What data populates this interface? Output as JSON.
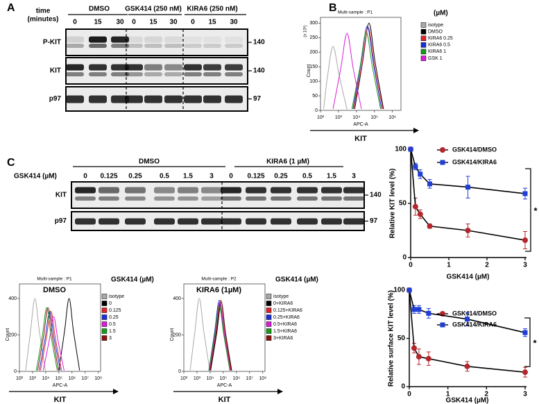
{
  "panel_a": {
    "label": "A",
    "time_label": [
      "time",
      "(minutes)"
    ],
    "groups": [
      "DMSO",
      "GSK414 (250 nM)",
      "KIRA6 (250 nM)"
    ],
    "times": [
      "0",
      "15",
      "30",
      "0",
      "15",
      "30",
      "0",
      "15",
      "30"
    ],
    "rows": [
      {
        "name": "P-KIT",
        "mw": "140"
      },
      {
        "name": "KIT",
        "mw": "140"
      },
      {
        "name": "p97",
        "mw": "97"
      }
    ]
  },
  "panel_c": {
    "label": "C",
    "groups": [
      "DMSO",
      "KIRA6 (1 µM)"
    ],
    "dose_label": "GSK414 (µM)",
    "doses": [
      "0",
      "0.125",
      "0.25",
      "0.5",
      "1.5",
      "3",
      "0",
      "0.125",
      "0.25",
      "0.5",
      "1.5",
      "3"
    ],
    "rows": [
      {
        "name": "KIT",
        "mw": "140"
      },
      {
        "name": "p97",
        "mw": "97"
      }
    ]
  },
  "chart_data": [
    {
      "type": "density",
      "panel": "B",
      "title": "Multi-sample : P1",
      "legend_title": "(µM)",
      "y_label": "Count",
      "y_multiplier": "(x 10¹)",
      "x_label": "APC-A",
      "arrow_label": "KIT",
      "log_x": true,
      "xlim": [
        100,
        3000000
      ],
      "xticks": [
        {
          "value": 100,
          "label": "10²"
        },
        {
          "value": 1000,
          "label": "10³"
        },
        {
          "value": 10000,
          "label": "10⁴"
        },
        {
          "value": 100000,
          "label": "10⁵"
        },
        {
          "value": 1000000,
          "label": "10⁶"
        }
      ],
      "ylim": [
        0,
        320
      ],
      "yticks": [
        0,
        50,
        100,
        150,
        200,
        250,
        300
      ],
      "series": [
        {
          "name": "isotype",
          "color": "#a8a8a8",
          "x": [
            150,
            250,
            500,
            1100,
            3000
          ],
          "values": [
            5,
            120,
            220,
            120,
            3
          ]
        },
        {
          "name": "DMSO",
          "color": "#000000",
          "x": [
            8000,
            22000,
            50000,
            110000,
            320000
          ],
          "values": [
            5,
            165,
            300,
            165,
            5
          ]
        },
        {
          "name": "KIRA6 0.25",
          "color": "#e0242a",
          "x": [
            7000,
            20000,
            45000,
            100000,
            290000
          ],
          "values": [
            5,
            155,
            285,
            155,
            5
          ]
        },
        {
          "name": "KIRA6 0.5",
          "color": "#1c2ed8",
          "x": [
            6400,
            18000,
            40000,
            88000,
            250000
          ],
          "values": [
            5,
            160,
            290,
            160,
            5
          ]
        },
        {
          "name": "KIRA6 1",
          "color": "#1a9a1a",
          "x": [
            5600,
            16000,
            35000,
            77000,
            220000
          ],
          "values": [
            5,
            150,
            270,
            150,
            5
          ]
        },
        {
          "name": "GSK 1",
          "color": "#d81cd8",
          "x": [
            500,
            1350,
            3000,
            6600,
            19000
          ],
          "values": [
            5,
            145,
            265,
            145,
            5
          ]
        }
      ]
    },
    {
      "type": "line",
      "y_label": "Relative KIT level (%)",
      "x_label": "GSK414 (µM)",
      "annotation": "*",
      "xlim": [
        0,
        3
      ],
      "xticks": [
        0,
        1,
        2,
        3
      ],
      "ylim": [
        0,
        100
      ],
      "yticks": [
        0,
        50,
        100
      ],
      "x": [
        0,
        0.125,
        0.25,
        0.5,
        1.5,
        3
      ],
      "series": [
        {
          "name": "GSK414/DMSO",
          "color": "#b3262b",
          "marker": "circle",
          "values": [
            100,
            47,
            40,
            29,
            25,
            16
          ],
          "errors": [
            0,
            8,
            4,
            2,
            6,
            8
          ]
        },
        {
          "name": "GSK414/KIRA6",
          "color": "#1f3fd6",
          "marker": "square",
          "values": [
            100,
            84,
            77,
            68,
            65,
            59
          ],
          "errors": [
            0,
            3,
            4,
            4,
            10,
            5
          ]
        }
      ]
    },
    {
      "type": "density",
      "title": "Multi-sample : P1",
      "subtitle": "DMSO",
      "legend_title": "GSK414 (µM)",
      "y_label": "Count",
      "x_label": "APC-A",
      "arrow_label": "KIT",
      "log_x": true,
      "xlim": [
        100,
        150000000
      ],
      "xticks": [
        {
          "value": 100,
          "label": "10²"
        },
        {
          "value": 1000,
          "label": "10³"
        },
        {
          "value": 10000,
          "label": "10⁴"
        },
        {
          "value": 100000,
          "label": "10⁵"
        },
        {
          "value": 1000000,
          "label": "10⁶"
        },
        {
          "value": 10000000,
          "label": "10⁷"
        },
        {
          "value": 100000000,
          "label": "10⁸"
        }
      ],
      "ylim": [
        0,
        480
      ],
      "yticks": [
        0,
        200,
        400
      ],
      "series": [
        {
          "name": "isotype",
          "color": "#a8a8a8",
          "x": [
            300,
            700,
            1500,
            3300,
            9500
          ],
          "values": [
            5,
            220,
            400,
            220,
            5
          ]
        },
        {
          "name": "0",
          "color": "#000000",
          "x": [
            100000,
            270000,
            600000,
            1300000,
            3800000
          ],
          "values": [
            5,
            220,
            400,
            220,
            5
          ]
        },
        {
          "name": "0.125",
          "color": "#e0242a",
          "x": [
            4000,
            11000,
            25000,
            55000,
            160000
          ],
          "values": [
            5,
            180,
            330,
            180,
            5
          ]
        },
        {
          "name": "0.25",
          "color": "#1c2ed8",
          "x": [
            3200,
            9000,
            20000,
            44000,
            130000
          ],
          "values": [
            5,
            180,
            330,
            180,
            5
          ]
        },
        {
          "name": "0.5",
          "color": "#d81cd8",
          "x": [
            6400,
            18000,
            40000,
            88000,
            250000
          ],
          "values": [
            5,
            165,
            300,
            165,
            5
          ]
        },
        {
          "name": "1.5",
          "color": "#1a9a1a",
          "x": [
            1900,
            5400,
            12000,
            26000,
            76000
          ],
          "values": [
            5,
            190,
            350,
            190,
            5
          ]
        },
        {
          "name": "3",
          "color": "#8b1010",
          "x": [
            2400,
            6800,
            15000,
            33000,
            95000
          ],
          "values": [
            5,
            190,
            350,
            190,
            5
          ]
        }
      ]
    },
    {
      "type": "density",
      "title": "Multi-sample : P2",
      "subtitle": "KIRA6 (1µM)",
      "legend_title": "GSK414 (µM)",
      "y_label": "Count",
      "x_label": "APC-A",
      "arrow_label": "KIT",
      "log_x": true,
      "xlim": [
        100,
        150000000
      ],
      "xticks": [
        {
          "value": 100,
          "label": "10²"
        },
        {
          "value": 1000,
          "label": "10³"
        },
        {
          "value": 10000,
          "label": "10⁴"
        },
        {
          "value": 100000,
          "label": "10⁵"
        },
        {
          "value": 1000000,
          "label": "10⁶"
        },
        {
          "value": 10000000,
          "label": "10⁷"
        },
        {
          "value": 100000000,
          "label": "10⁸"
        }
      ],
      "ylim": [
        0,
        480
      ],
      "yticks": [
        0,
        200,
        400
      ],
      "series": [
        {
          "name": "isotype",
          "color": "#a8a8a8",
          "x": [
            300,
            700,
            1500,
            3300,
            9500
          ],
          "values": [
            5,
            220,
            400,
            220,
            5
          ]
        },
        {
          "name": "0+KIRA6",
          "color": "#000000",
          "x": [
            11000,
            32000,
            70000,
            150000,
            440000
          ],
          "values": [
            5,
            210,
            380,
            210,
            5
          ]
        },
        {
          "name": "0.125+KIRA6",
          "color": "#e0242a",
          "x": [
            9600,
            27000,
            60000,
            130000,
            380000
          ],
          "values": [
            5,
            200,
            360,
            200,
            5
          ]
        },
        {
          "name": "0.25+KIRA6",
          "color": "#1c2ed8",
          "x": [
            8000,
            22000,
            50000,
            110000,
            320000
          ],
          "values": [
            5,
            215,
            390,
            215,
            5
          ]
        },
        {
          "name": "0.5+KIRA6",
          "color": "#d81cd8",
          "x": [
            8800,
            25000,
            55000,
            120000,
            350000
          ],
          "values": [
            5,
            210,
            380,
            210,
            5
          ]
        },
        {
          "name": "1.5+KIRA6",
          "color": "#1a9a1a",
          "x": [
            8000,
            22000,
            50000,
            110000,
            320000
          ],
          "values": [
            5,
            200,
            360,
            200,
            5
          ]
        },
        {
          "name": "3+KIRA6",
          "color": "#8b1010",
          "x": [
            10000,
            29000,
            65000,
            140000,
            410000
          ],
          "values": [
            5,
            215,
            390,
            215,
            5
          ]
        }
      ]
    },
    {
      "type": "line",
      "y_label": "Relative surface KIT level (%)",
      "x_label": "GSK414 (µM)",
      "annotation": "*",
      "xlim": [
        0,
        3
      ],
      "xticks": [
        0,
        1,
        2,
        3
      ],
      "ylim": [
        0,
        100
      ],
      "yticks": [
        0,
        50,
        100
      ],
      "x": [
        0,
        0.125,
        0.25,
        0.5,
        1.5,
        3
      ],
      "series": [
        {
          "name": "GSK414/DMSO",
          "color": "#b3262b",
          "marker": "circle",
          "values": [
            100,
            40,
            31,
            29,
            21,
            15
          ],
          "errors": [
            0,
            5,
            8,
            7,
            5,
            5
          ]
        },
        {
          "name": "GSK414/KIRA6",
          "color": "#1f3fd6",
          "marker": "square",
          "values": [
            100,
            80,
            80,
            76,
            70,
            56
          ],
          "errors": [
            0,
            4,
            4,
            5,
            7,
            4
          ]
        }
      ]
    }
  ]
}
